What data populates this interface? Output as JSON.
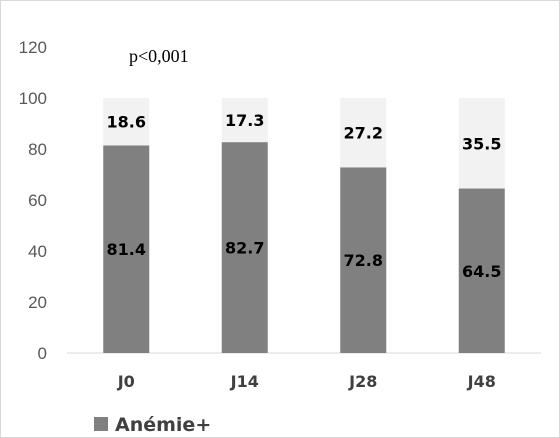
{
  "chart_data": {
    "type": "bar",
    "stacked": true,
    "categories": [
      "J0",
      "J14",
      "J28",
      "J48"
    ],
    "series": [
      {
        "name": "Anémie+",
        "values": [
          81.4,
          82.7,
          72.8,
          64.5
        ],
        "color": "#808080",
        "labels": [
          "81.4",
          "82.7",
          "72.8",
          "64.5"
        ]
      },
      {
        "name": "",
        "values": [
          18.6,
          17.3,
          27.2,
          35.5
        ],
        "color": "#f2f2f2",
        "labels": [
          "18.6",
          "17.3",
          "27.2",
          "35.5"
        ]
      }
    ],
    "yticks": [
      "0",
      "20",
      "40",
      "60",
      "80",
      "100",
      "120"
    ],
    "ylim": [
      0,
      120
    ],
    "annotation": "p<0,001",
    "legend": {
      "position": "bottom-left",
      "entries": [
        "Anémie+"
      ]
    },
    "grid": false,
    "title": "",
    "xlabel": "",
    "ylabel": ""
  }
}
